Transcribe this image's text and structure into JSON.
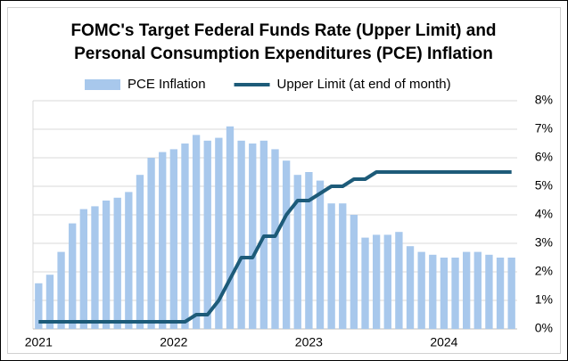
{
  "chart_data": {
    "type": "bar",
    "title": [
      "FOMC's Target Federal Funds Rate (Upper Limit) and",
      "Personal Consumption Expenditures (PCE) Inflation"
    ],
    "categories": [
      "2021",
      null,
      null,
      null,
      null,
      null,
      null,
      null,
      null,
      null,
      null,
      null,
      "2022",
      null,
      null,
      null,
      null,
      null,
      null,
      null,
      null,
      null,
      null,
      null,
      "2023",
      null,
      null,
      null,
      null,
      null,
      null,
      null,
      null,
      null,
      null,
      null,
      "2024",
      null,
      null,
      null,
      null,
      null,
      null
    ],
    "series": [
      {
        "name": "PCE Inflation",
        "type": "bar",
        "color": "#a8c8ec",
        "values": [
          1.6,
          1.9,
          2.7,
          3.7,
          4.2,
          4.3,
          4.5,
          4.6,
          4.8,
          5.4,
          6.0,
          6.2,
          6.3,
          6.5,
          6.8,
          6.6,
          6.7,
          7.1,
          6.6,
          6.5,
          6.6,
          6.3,
          5.9,
          5.4,
          5.5,
          5.2,
          4.4,
          4.4,
          4.0,
          3.2,
          3.3,
          3.3,
          3.4,
          2.9,
          2.7,
          2.6,
          2.5,
          2.5,
          2.7,
          2.7,
          2.6,
          2.5,
          2.5
        ]
      },
      {
        "name": "Upper Limit (at end of month)",
        "type": "line",
        "color": "#1d5b79",
        "values": [
          0.25,
          0.25,
          0.25,
          0.25,
          0.25,
          0.25,
          0.25,
          0.25,
          0.25,
          0.25,
          0.25,
          0.25,
          0.25,
          0.25,
          0.5,
          0.5,
          1.0,
          1.75,
          2.5,
          2.5,
          3.25,
          3.25,
          4.0,
          4.5,
          4.5,
          4.75,
          5.0,
          5.0,
          5.25,
          5.25,
          5.5,
          5.5,
          5.5,
          5.5,
          5.5,
          5.5,
          5.5,
          5.5,
          5.5,
          5.5,
          5.5,
          5.5,
          5.5
        ]
      }
    ],
    "ylim": [
      0,
      8
    ],
    "yticks": [
      {
        "value": 0,
        "label": "0%"
      },
      {
        "value": 1,
        "label": "1%"
      },
      {
        "value": 2,
        "label": "2%"
      },
      {
        "value": 3,
        "label": "3%"
      },
      {
        "value": 4,
        "label": "4%"
      },
      {
        "value": 5,
        "label": "5%"
      },
      {
        "value": 6,
        "label": "6%"
      },
      {
        "value": 7,
        "label": "7%"
      },
      {
        "value": 8,
        "label": "8%"
      }
    ],
    "grid": true,
    "legend": "top"
  }
}
